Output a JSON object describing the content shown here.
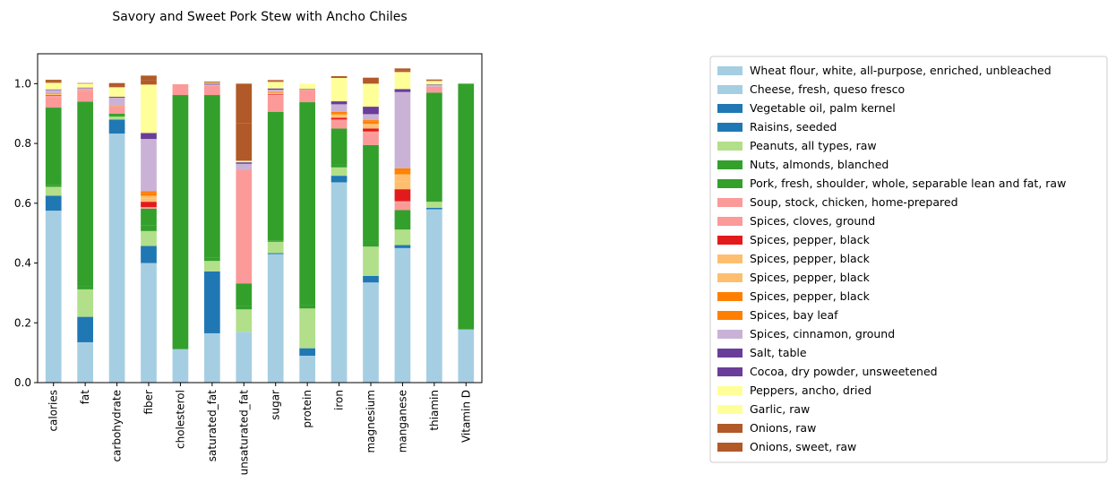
{
  "chart_data": {
    "type": "bar",
    "stacked": true,
    "title": "Savory and Sweet Pork Stew with Ancho Chiles",
    "xlabel": "",
    "ylabel": "",
    "ylim": [
      0,
      1.1
    ],
    "yticks": [
      0.0,
      0.2,
      0.4,
      0.6,
      0.8,
      1.0
    ],
    "ytick_labels": [
      "0.0",
      "0.2",
      "0.4",
      "0.6",
      "0.8",
      "1.0"
    ],
    "grid": false,
    "legend_position": "right",
    "categories": [
      "calories",
      "fat",
      "carbohydrate",
      "fiber",
      "cholesterol",
      "saturated_fat",
      "unsaturated_fat",
      "sugar",
      "protein",
      "iron",
      "magnesium",
      "manganese",
      "thiamin",
      "Vitamin D"
    ],
    "series": [
      {
        "name": "Wheat flour, white, all-purpose, enriched, unbleached",
        "color": "#a6cee3",
        "values": [
          0.575,
          0.135,
          0.833,
          0.4,
          0,
          0.165,
          0.17,
          0.43,
          0.09,
          0.67,
          0.335,
          0.45,
          0.58,
          0
        ]
      },
      {
        "name": "Cheese, fresh, queso fresco",
        "color": "#a6cee3",
        "values": [
          0,
          0,
          0,
          0,
          0.112,
          0,
          0,
          0,
          0,
          0,
          0,
          0,
          0,
          0.178
        ]
      },
      {
        "name": "Vegetable oil, palm kernel",
        "color": "#1f78b4",
        "values": [
          0,
          0.085,
          0,
          0,
          0,
          0.207,
          0,
          0,
          0,
          0,
          0,
          0,
          0,
          0
        ]
      },
      {
        "name": "Raisins, seeded",
        "color": "#1f78b4",
        "values": [
          0.05,
          0,
          0.047,
          0.057,
          0,
          0,
          0,
          0.003,
          0.025,
          0.022,
          0.022,
          0.01,
          0.005,
          0
        ]
      },
      {
        "name": "Peanuts, all types, raw",
        "color": "#b2df8a",
        "values": [
          0.03,
          0.092,
          0.01,
          0.05,
          0,
          0.035,
          0.075,
          0.038,
          0.133,
          0.028,
          0.098,
          0.052,
          0.02,
          0
        ]
      },
      {
        "name": "Nuts, almonds, blanched",
        "color": "#33a02c",
        "values": [
          0.005,
          0.01,
          0.005,
          0.02,
          0,
          0.01,
          0.01,
          0.005,
          0.01,
          0.01,
          0.02,
          0.005,
          0.005,
          0
        ]
      },
      {
        "name": "Pork, fresh, shoulder, whole, separable lean and fat, raw",
        "color": "#33a02c",
        "values": [
          0.26,
          0.618,
          0.005,
          0.055,
          0.85,
          0.545,
          0.077,
          0.43,
          0.68,
          0.12,
          0.32,
          0.06,
          0.36,
          0.822
        ]
      },
      {
        "name": "Soup, stock, chicken, home-prepared",
        "color": "#fb9a99",
        "values": [
          0.035,
          0.035,
          0.02,
          0,
          0.036,
          0.03,
          0.38,
          0.055,
          0.04,
          0.025,
          0.04,
          0.025,
          0.02,
          0
        ]
      },
      {
        "name": "Spices, cloves, ground",
        "color": "#fb9a99",
        "values": [
          0.005,
          0.003,
          0.003,
          0.005,
          0,
          0.002,
          0,
          0.002,
          0.002,
          0.005,
          0.005,
          0.005,
          0,
          0
        ]
      },
      {
        "name": "Spices, pepper, black",
        "color": "#e31a1c",
        "values": [
          0.002,
          0.001,
          0.001,
          0.018,
          0,
          0,
          0,
          0.002,
          0,
          0.006,
          0.01,
          0.04,
          0,
          0
        ]
      },
      {
        "name": "Spices, pepper, black",
        "color": "#fdbf6f",
        "values": [
          0.002,
          0.001,
          0.001,
          0.01,
          0,
          0,
          0,
          0.002,
          0,
          0.006,
          0.008,
          0.025,
          0,
          0
        ]
      },
      {
        "name": "Spices, pepper, black",
        "color": "#fdbf6f",
        "values": [
          0.002,
          0.001,
          0.001,
          0.01,
          0,
          0,
          0,
          0.002,
          0,
          0.005,
          0.008,
          0.025,
          0,
          0
        ]
      },
      {
        "name": "Spices, pepper, black",
        "color": "#ff7f00",
        "values": [
          0.002,
          0.001,
          0.001,
          0.01,
          0,
          0,
          0,
          0.002,
          0,
          0.005,
          0.007,
          0.01,
          0,
          0
        ]
      },
      {
        "name": "Spices, bay leaf",
        "color": "#ff7f00",
        "values": [
          0.001,
          0,
          0.001,
          0.005,
          0,
          0,
          0,
          0.001,
          0,
          0.004,
          0.005,
          0.01,
          0,
          0
        ]
      },
      {
        "name": "Spices, cinnamon, ground",
        "color": "#cab2d6",
        "values": [
          0.01,
          0.003,
          0.025,
          0.175,
          0,
          0.003,
          0.02,
          0.008,
          0,
          0.025,
          0.02,
          0.255,
          0.005,
          0
        ]
      },
      {
        "name": "Salt, table",
        "color": "#6a3d9a",
        "values": [
          0,
          0,
          0,
          0,
          0,
          0,
          0,
          0,
          0,
          0,
          0,
          0,
          0,
          0
        ]
      },
      {
        "name": "Cocoa, dry powder, unsweetened",
        "color": "#6a3d9a",
        "values": [
          0.002,
          0.002,
          0.003,
          0.02,
          0,
          0.003,
          0.005,
          0.004,
          0.002,
          0.01,
          0.025,
          0.01,
          0.002,
          0
        ]
      },
      {
        "name": "Peppers, ancho, dried",
        "color": "#ffff99",
        "values": [
          0.02,
          0.012,
          0.03,
          0.16,
          0,
          0.003,
          0.005,
          0.02,
          0.018,
          0.075,
          0.075,
          0.055,
          0.01,
          0
        ]
      },
      {
        "name": "Garlic, raw",
        "color": "#ffff99",
        "values": [
          0.002,
          0.001,
          0.002,
          0.002,
          0,
          0,
          0,
          0.002,
          0,
          0.003,
          0.002,
          0.002,
          0.002,
          0
        ]
      },
      {
        "name": "Onions, raw",
        "color": "#b15928",
        "values": [
          0.005,
          0.001,
          0.007,
          0.015,
          0,
          0.002,
          0.125,
          0.003,
          0,
          0.003,
          0.01,
          0.006,
          0.003,
          0
        ]
      },
      {
        "name": "Onions, sweet, raw",
        "color": "#b15928",
        "values": [
          0.005,
          0.001,
          0.007,
          0.015,
          0,
          0.002,
          0.133,
          0.003,
          0,
          0.003,
          0.01,
          0.006,
          0.002,
          0
        ]
      }
    ]
  }
}
